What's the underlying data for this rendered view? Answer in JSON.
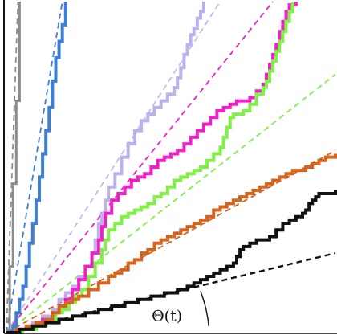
{
  "chart_data": {
    "type": "line",
    "title": "",
    "xlabel": "",
    "ylabel": "",
    "xlim": [
      0,
      100
    ],
    "ylim": [
      0,
      100
    ],
    "grid": false,
    "legend": "none",
    "annotation": {
      "text": "Θ(t)",
      "target_series": "black-dashed",
      "arrow_from": [
        61.5,
        2.0
      ],
      "arrow_to": [
        59.0,
        12.5
      ],
      "label_at": [
        51.0,
        5.0
      ]
    },
    "step_series": [
      {
        "id": "gray",
        "color": "#8c8c8c",
        "points": [
          [
            0,
            0
          ],
          [
            1,
            20
          ],
          [
            2,
            45
          ],
          [
            3,
            70
          ],
          [
            4,
            100
          ]
        ]
      },
      {
        "id": "blue",
        "color": "#3c7fd6",
        "points": [
          [
            0,
            0
          ],
          [
            2,
            2
          ],
          [
            3,
            6
          ],
          [
            4,
            10
          ],
          [
            5,
            14
          ],
          [
            6,
            20
          ],
          [
            7,
            27
          ],
          [
            8,
            33
          ],
          [
            9,
            40
          ],
          [
            10,
            47
          ],
          [
            11,
            54
          ],
          [
            12,
            61
          ],
          [
            13,
            68
          ],
          [
            14,
            76
          ],
          [
            15,
            83
          ],
          [
            16,
            88
          ],
          [
            17,
            93
          ],
          [
            18,
            100
          ]
        ]
      },
      {
        "id": "lavender",
        "color": "#bdb1ec",
        "points": [
          [
            0,
            0
          ],
          [
            5,
            1
          ],
          [
            8,
            3
          ],
          [
            11,
            5
          ],
          [
            14,
            7
          ],
          [
            16,
            10
          ],
          [
            18,
            12
          ],
          [
            20,
            14
          ],
          [
            22,
            17
          ],
          [
            24,
            20
          ],
          [
            26,
            24
          ],
          [
            27,
            28
          ],
          [
            28,
            33
          ],
          [
            29,
            36
          ],
          [
            30,
            40
          ],
          [
            31,
            44
          ],
          [
            33,
            48
          ],
          [
            35,
            53
          ],
          [
            37,
            57
          ],
          [
            39,
            61
          ],
          [
            41,
            64
          ],
          [
            43,
            66
          ],
          [
            45,
            68
          ],
          [
            47,
            70
          ],
          [
            49,
            72
          ],
          [
            51,
            74
          ],
          [
            52,
            77
          ],
          [
            53,
            80
          ],
          [
            54,
            84
          ],
          [
            55,
            87
          ],
          [
            56,
            90
          ],
          [
            57,
            92
          ],
          [
            58,
            95
          ],
          [
            59,
            97
          ],
          [
            60,
            100
          ]
        ]
      },
      {
        "id": "magenta",
        "color": "#f020c8",
        "points": [
          [
            0,
            0
          ],
          [
            4,
            1
          ],
          [
            8,
            2
          ],
          [
            11,
            4
          ],
          [
            14,
            6
          ],
          [
            16,
            8
          ],
          [
            18,
            10
          ],
          [
            20,
            13
          ],
          [
            22,
            16
          ],
          [
            24,
            20
          ],
          [
            26,
            24
          ],
          [
            28,
            28
          ],
          [
            29,
            32
          ],
          [
            30,
            36
          ],
          [
            32,
            40
          ],
          [
            34,
            42
          ],
          [
            36,
            44
          ],
          [
            38,
            46
          ],
          [
            40,
            47
          ],
          [
            42,
            48
          ],
          [
            44,
            50
          ],
          [
            46,
            52
          ],
          [
            48,
            53
          ],
          [
            50,
            54
          ],
          [
            52,
            55
          ],
          [
            54,
            57
          ],
          [
            56,
            59
          ],
          [
            58,
            61
          ],
          [
            60,
            63
          ],
          [
            62,
            65
          ],
          [
            64,
            67
          ],
          [
            66,
            68
          ],
          [
            68,
            69
          ],
          [
            70,
            70
          ],
          [
            72,
            70
          ],
          [
            74,
            71
          ],
          [
            76,
            73
          ],
          [
            78,
            75
          ],
          [
            79,
            78
          ],
          [
            80,
            81
          ],
          [
            81,
            84
          ],
          [
            82,
            87
          ],
          [
            83,
            91
          ],
          [
            84,
            94
          ],
          [
            85,
            97
          ],
          [
            86,
            99
          ],
          [
            88,
            100
          ]
        ]
      },
      {
        "id": "green",
        "color": "#80f048",
        "points": [
          [
            0,
            0
          ],
          [
            5,
            1
          ],
          [
            9,
            2
          ],
          [
            12,
            4
          ],
          [
            15,
            6
          ],
          [
            17,
            7
          ],
          [
            19,
            9
          ],
          [
            21,
            11
          ],
          [
            23,
            13
          ],
          [
            25,
            17
          ],
          [
            27,
            21
          ],
          [
            29,
            25
          ],
          [
            30,
            28
          ],
          [
            31,
            31
          ],
          [
            33,
            33
          ],
          [
            35,
            35
          ],
          [
            37,
            36
          ],
          [
            39,
            37
          ],
          [
            41,
            38
          ],
          [
            43,
            39
          ],
          [
            45,
            41
          ],
          [
            47,
            42
          ],
          [
            49,
            44
          ],
          [
            51,
            46
          ],
          [
            53,
            47
          ],
          [
            55,
            48
          ],
          [
            57,
            49
          ],
          [
            59,
            50
          ],
          [
            61,
            52
          ],
          [
            63,
            54
          ],
          [
            65,
            56
          ],
          [
            66,
            59
          ],
          [
            67,
            62
          ],
          [
            68,
            65
          ],
          [
            69,
            66
          ],
          [
            70,
            66
          ],
          [
            71,
            66
          ],
          [
            72,
            67
          ],
          [
            74,
            69
          ],
          [
            76,
            72
          ],
          [
            78,
            74
          ],
          [
            79,
            76
          ],
          [
            80,
            79
          ],
          [
            81,
            82
          ],
          [
            82,
            85
          ],
          [
            83,
            88
          ],
          [
            84,
            91
          ],
          [
            85,
            94
          ],
          [
            86,
            97
          ],
          [
            87,
            100
          ]
        ]
      },
      {
        "id": "orange",
        "color": "#d5641e",
        "points": [
          [
            0,
            0
          ],
          [
            3,
            1
          ],
          [
            6,
            2
          ],
          [
            9,
            3
          ],
          [
            12,
            4
          ],
          [
            14,
            6
          ],
          [
            16,
            8
          ],
          [
            18,
            9
          ],
          [
            20,
            10
          ],
          [
            22,
            11
          ],
          [
            25,
            13
          ],
          [
            28,
            15
          ],
          [
            31,
            17
          ],
          [
            33,
            18
          ],
          [
            35,
            19
          ],
          [
            37,
            21
          ],
          [
            39,
            22
          ],
          [
            41,
            24
          ],
          [
            43,
            25
          ],
          [
            45,
            27
          ],
          [
            47,
            28
          ],
          [
            49,
            29
          ],
          [
            51,
            30
          ],
          [
            53,
            31
          ],
          [
            55,
            32
          ],
          [
            57,
            33
          ],
          [
            59,
            34
          ],
          [
            61,
            35
          ],
          [
            63,
            37
          ],
          [
            65,
            38
          ],
          [
            67,
            39
          ],
          [
            69,
            40
          ],
          [
            71,
            41
          ],
          [
            73,
            42
          ],
          [
            75,
            43
          ],
          [
            77,
            44
          ],
          [
            79,
            45
          ],
          [
            81,
            46
          ],
          [
            83,
            47
          ],
          [
            85,
            48
          ],
          [
            87,
            49
          ],
          [
            89,
            49
          ],
          [
            91,
            50
          ],
          [
            93,
            51
          ],
          [
            95,
            52
          ],
          [
            97,
            53
          ],
          [
            100,
            54
          ]
        ]
      },
      {
        "id": "black",
        "color": "#111111",
        "points": [
          [
            0,
            0
          ],
          [
            4,
            1
          ],
          [
            8,
            2
          ],
          [
            12,
            3
          ],
          [
            16,
            4
          ],
          [
            20,
            5
          ],
          [
            24,
            6
          ],
          [
            28,
            7
          ],
          [
            32,
            8
          ],
          [
            36,
            9
          ],
          [
            40,
            10
          ],
          [
            44,
            11
          ],
          [
            48,
            12
          ],
          [
            52,
            13
          ],
          [
            55,
            14
          ],
          [
            57,
            15
          ],
          [
            59,
            16
          ],
          [
            61,
            17
          ],
          [
            63,
            18
          ],
          [
            65,
            19
          ],
          [
            67,
            20
          ],
          [
            69,
            21
          ],
          [
            70,
            23
          ],
          [
            71,
            25
          ],
          [
            72,
            26
          ],
          [
            74,
            27
          ],
          [
            76,
            28
          ],
          [
            78,
            28
          ],
          [
            80,
            29
          ],
          [
            82,
            31
          ],
          [
            84,
            33
          ],
          [
            86,
            34
          ],
          [
            88,
            35
          ],
          [
            90,
            36
          ],
          [
            91,
            37
          ],
          [
            92,
            39
          ],
          [
            93,
            40
          ],
          [
            94,
            41
          ],
          [
            95,
            42
          ],
          [
            96,
            42
          ],
          [
            98,
            42
          ],
          [
            100,
            43
          ]
        ]
      }
    ],
    "dashed_series": [
      {
        "id": "gray-dashed",
        "color": "#8c8c8c",
        "from": [
          0,
          0
        ],
        "to": [
          3.5,
          100
        ]
      },
      {
        "id": "blue-dashed",
        "color": "#3c7fd6",
        "from": [
          0,
          0
        ],
        "to": [
          17,
          100
        ]
      },
      {
        "id": "lavender-dashed",
        "color": "#c8b8ee",
        "from": [
          0,
          0
        ],
        "to": [
          65,
          100
        ]
      },
      {
        "id": "magenta-dashed",
        "color": "#f020c8",
        "from": [
          0,
          0
        ],
        "to": [
          81,
          100
        ]
      },
      {
        "id": "green-dashed",
        "color": "#80f048",
        "from": [
          0,
          0
        ],
        "to": [
          100,
          78
        ]
      },
      {
        "id": "orange-dashed",
        "color": "#d5641e",
        "from": [
          0,
          0
        ],
        "to": [
          100,
          55
        ]
      },
      {
        "id": "black-dashed",
        "color": "#111111",
        "from": [
          0,
          0
        ],
        "to": [
          100,
          24
        ]
      }
    ]
  }
}
